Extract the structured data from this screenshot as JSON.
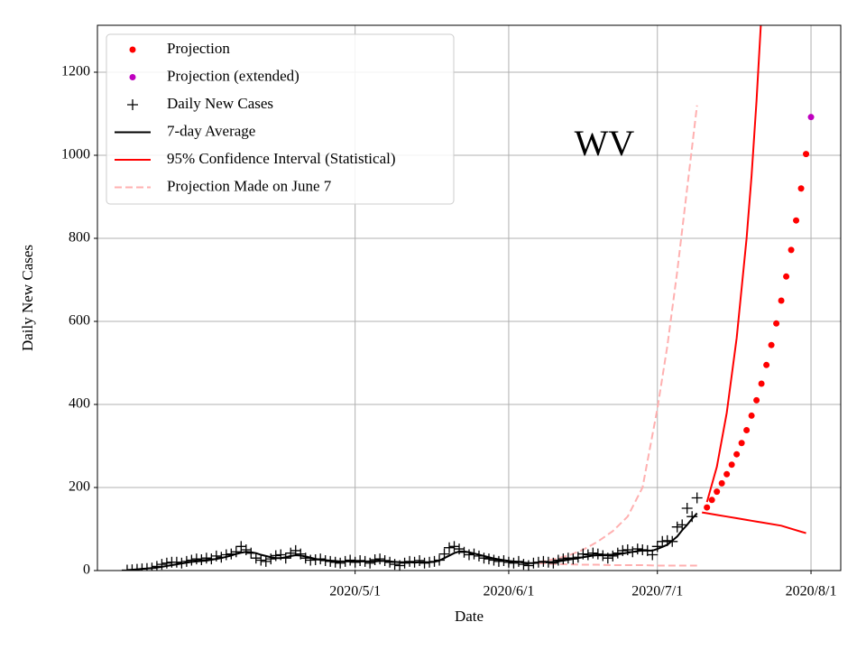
{
  "chart_data": {
    "type": "line",
    "annotation": "WV",
    "xlabel": "Date",
    "ylabel": "Daily New Cases",
    "xlim": [
      "2020-03-10",
      "2020-08-07"
    ],
    "xticks": [
      {
        "value": "2020-05-01",
        "label": "2020/5/1"
      },
      {
        "value": "2020-06-01",
        "label": "2020/6/1"
      },
      {
        "value": "2020-07-01",
        "label": "2020/7/1"
      },
      {
        "value": "2020-08-01",
        "label": "2020/8/1"
      }
    ],
    "ylim": [
      0,
      1313
    ],
    "yticks": [
      0,
      200,
      400,
      600,
      800,
      1000,
      1200
    ],
    "grid": true,
    "legend": "upper left",
    "x": [
      "2020-03-16",
      "2020-03-17",
      "2020-03-18",
      "2020-03-19",
      "2020-03-20",
      "2020-03-21",
      "2020-03-22",
      "2020-03-23",
      "2020-03-24",
      "2020-03-25",
      "2020-03-26",
      "2020-03-27",
      "2020-03-28",
      "2020-03-29",
      "2020-03-30",
      "2020-03-31",
      "2020-04-01",
      "2020-04-02",
      "2020-04-03",
      "2020-04-04",
      "2020-04-05",
      "2020-04-06",
      "2020-04-07",
      "2020-04-08",
      "2020-04-09",
      "2020-04-10",
      "2020-04-11",
      "2020-04-12",
      "2020-04-13",
      "2020-04-14",
      "2020-04-15",
      "2020-04-16",
      "2020-04-17",
      "2020-04-18",
      "2020-04-19",
      "2020-04-20",
      "2020-04-21",
      "2020-04-22",
      "2020-04-23",
      "2020-04-24",
      "2020-04-25",
      "2020-04-26",
      "2020-04-27",
      "2020-04-28",
      "2020-04-29",
      "2020-04-30",
      "2020-05-01",
      "2020-05-02",
      "2020-05-03",
      "2020-05-04",
      "2020-05-05",
      "2020-05-06",
      "2020-05-07",
      "2020-05-08",
      "2020-05-09",
      "2020-05-10",
      "2020-05-11",
      "2020-05-12",
      "2020-05-13",
      "2020-05-14",
      "2020-05-15",
      "2020-05-16",
      "2020-05-17",
      "2020-05-18",
      "2020-05-19",
      "2020-05-20",
      "2020-05-21",
      "2020-05-22",
      "2020-05-23",
      "2020-05-24",
      "2020-05-25",
      "2020-05-26",
      "2020-05-27",
      "2020-05-28",
      "2020-05-29",
      "2020-05-30",
      "2020-05-31",
      "2020-06-01",
      "2020-06-02",
      "2020-06-03",
      "2020-06-04",
      "2020-06-05",
      "2020-06-06",
      "2020-06-07",
      "2020-06-08",
      "2020-06-09",
      "2020-06-10",
      "2020-06-11",
      "2020-06-12",
      "2020-06-13",
      "2020-06-14",
      "2020-06-15",
      "2020-06-16",
      "2020-06-17",
      "2020-06-18",
      "2020-06-19",
      "2020-06-20",
      "2020-06-21",
      "2020-06-22",
      "2020-06-23",
      "2020-06-24",
      "2020-06-25",
      "2020-06-26",
      "2020-06-27",
      "2020-06-28",
      "2020-06-29",
      "2020-06-30",
      "2020-07-01",
      "2020-07-02",
      "2020-07-03",
      "2020-07-04",
      "2020-07-05",
      "2020-07-06",
      "2020-07-07",
      "2020-07-08",
      "2020-07-09"
    ],
    "series": [
      {
        "name": "Projection",
        "color": "#ff0000",
        "marker": "dot",
        "x": [
          "2020-07-11",
          "2020-07-12",
          "2020-07-13",
          "2020-07-14",
          "2020-07-15",
          "2020-07-16",
          "2020-07-17",
          "2020-07-18",
          "2020-07-19",
          "2020-07-20",
          "2020-07-21",
          "2020-07-22",
          "2020-07-23",
          "2020-07-24",
          "2020-07-25",
          "2020-07-26",
          "2020-07-27",
          "2020-07-28",
          "2020-07-29",
          "2020-07-30",
          "2020-07-31"
        ],
        "values": [
          152,
          170,
          190,
          210,
          232,
          255,
          280,
          307,
          338,
          373,
          410,
          450,
          495,
          543,
          595,
          650,
          708,
          772,
          843,
          920,
          1003
        ]
      },
      {
        "name": "Projection (extended)",
        "color": "#bf00bf",
        "marker": "dot",
        "x": [
          "2020-08-01"
        ],
        "values": [
          1092
        ]
      },
      {
        "name": "Daily New Cases",
        "color": "#000000",
        "marker": "plus",
        "values": [
          1,
          2,
          3,
          4,
          5,
          6,
          10,
          15,
          18,
          20,
          20,
          18,
          22,
          25,
          28,
          26,
          30,
          28,
          35,
          32,
          38,
          40,
          45,
          58,
          50,
          42,
          30,
          25,
          22,
          28,
          36,
          38,
          30,
          42,
          48,
          40,
          30,
          25,
          26,
          28,
          24,
          22,
          20,
          18,
          22,
          25,
          20,
          24,
          22,
          18,
          26,
          28,
          24,
          20,
          15,
          12,
          18,
          22,
          20,
          24,
          18,
          20,
          22,
          25,
          40,
          55,
          58,
          52,
          44,
          38,
          40,
          35,
          30,
          28,
          25,
          22,
          24,
          20,
          18,
          22,
          15,
          12,
          18,
          20,
          22,
          20,
          18,
          25,
          28,
          30,
          28,
          32,
          40,
          38,
          42,
          40,
          36,
          30,
          35,
          42,
          48,
          50,
          45,
          52,
          50,
          48,
          38,
          58,
          70,
          72,
          70,
          105,
          110,
          150,
          130,
          175
        ]
      },
      {
        "name": "7-day Average",
        "color": "#000000",
        "line": "solid",
        "values": [
          1,
          2,
          3,
          4,
          5,
          6,
          7,
          9,
          11,
          13,
          15,
          17,
          19,
          21,
          22,
          23,
          24,
          26,
          28,
          30,
          33,
          36,
          40,
          43,
          45,
          44,
          42,
          38,
          35,
          32,
          30,
          30,
          32,
          35,
          37,
          36,
          34,
          31,
          28,
          26,
          25,
          24,
          23,
          22,
          22,
          22,
          22,
          22,
          22,
          22,
          22,
          23,
          23,
          22,
          21,
          20,
          20,
          20,
          19,
          20,
          20,
          20,
          21,
          24,
          30,
          36,
          42,
          46,
          46,
          44,
          41,
          38,
          35,
          32,
          29,
          27,
          25,
          23,
          22,
          21,
          19,
          18,
          18,
          19,
          19,
          20,
          21,
          22,
          24,
          26,
          28,
          30,
          32,
          34,
          36,
          37,
          38,
          38,
          38,
          39,
          41,
          43,
          45,
          47,
          48,
          48,
          48,
          52,
          57,
          62,
          72,
          82,
          97,
          110,
          125,
          138
        ]
      },
      {
        "name": "95% Confidence Interval (Statistical)",
        "color": "#ff0000",
        "line": "solid",
        "x": [
          "2020-07-10",
          "2020-07-11",
          "2020-07-13",
          "2020-07-15",
          "2020-07-17",
          "2020-07-19",
          "2020-07-20",
          "2020-07-21",
          "2020-07-22",
          "2020-07-26",
          "2020-07-31"
        ],
        "upper": [
          null,
          165,
          250,
          380,
          560,
          800,
          950,
          1130,
          1340,
          null,
          null
        ],
        "lower": [
          140,
          138,
          134,
          130,
          126,
          122,
          120,
          118,
          116,
          108,
          90
        ]
      },
      {
        "name": "Projection Made on June 7",
        "color": "#ffb0b0",
        "line": "dashed",
        "x": [
          "2020-06-07",
          "2020-06-10",
          "2020-06-13",
          "2020-06-16",
          "2020-06-19",
          "2020-06-22",
          "2020-06-25",
          "2020-06-28",
          "2020-07-01",
          "2020-07-03",
          "2020-07-05",
          "2020-07-07",
          "2020-07-09"
        ],
        "upper": [
          20,
          27,
          36,
          50,
          70,
          95,
          130,
          200,
          390,
          540,
          720,
          920,
          1120
        ],
        "lower": [
          18,
          16,
          15,
          14,
          14,
          13,
          13,
          13,
          12,
          12,
          12,
          12,
          12
        ]
      }
    ]
  }
}
